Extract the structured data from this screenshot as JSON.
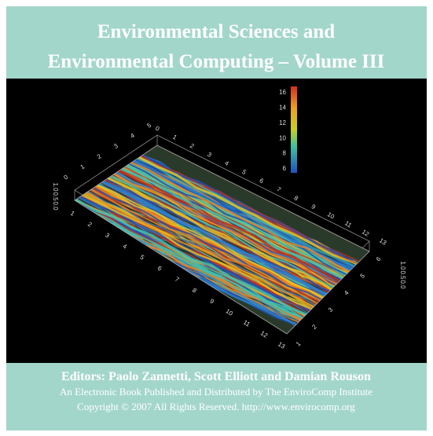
{
  "header": {
    "title_lines": [
      "Environmental Sciences and",
      "Environmental Computing – Volume III"
    ]
  },
  "figure": {
    "colorbar_ticks": [
      16,
      14,
      12,
      10,
      8,
      6
    ],
    "front_axis_labels": [
      1,
      2,
      3,
      4,
      5,
      6,
      7,
      8,
      9,
      10,
      11,
      12,
      13
    ],
    "back_axis_labels": [
      0,
      1,
      2,
      3,
      4,
      5,
      6,
      7,
      8,
      9,
      10,
      11,
      12,
      13
    ],
    "left_depth_labels": [
      0,
      1,
      2,
      3,
      4,
      5
    ],
    "right_depth_labels": [
      1,
      2,
      3,
      4,
      5,
      6
    ],
    "left_vertical_labels": [
      "0.0",
      "0.5",
      "1.0"
    ],
    "right_vertical_labels": [
      "0.0",
      "0.5",
      "1.0"
    ]
  },
  "footer": {
    "editors": "Editors: Paolo Zannetti, Scott Elliott and Damian Rouson",
    "publisher": "An Electronic Book Published and Distributed by The EnviroComp Institute",
    "copyright": "Copyright © 2007 All Rights Reserved.  http://www.envirocomp.org"
  }
}
